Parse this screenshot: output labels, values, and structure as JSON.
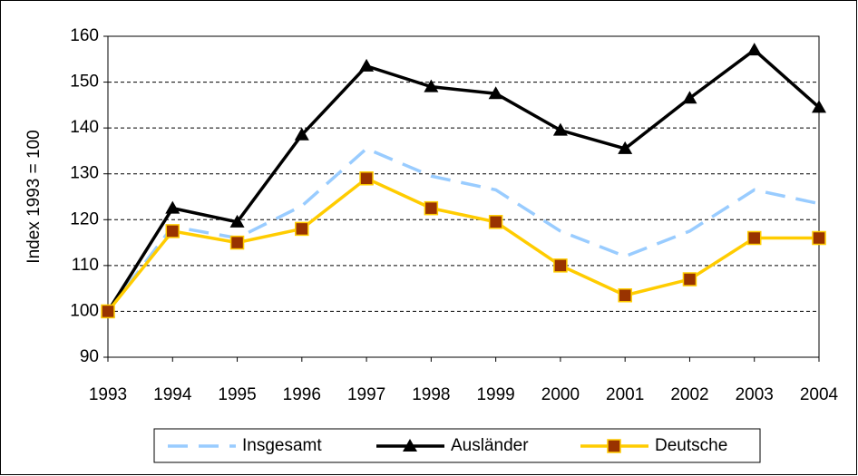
{
  "chart_data": {
    "type": "line",
    "y_label": "Index 1993 = 100",
    "categories": [
      "1993",
      "1994",
      "1995",
      "1996",
      "1997",
      "1998",
      "1999",
      "2000",
      "2001",
      "2002",
      "2003",
      "2004"
    ],
    "series": [
      {
        "name": "Insgesamt",
        "color": "#99ccff",
        "dash": true,
        "marker": "none",
        "values": [
          100,
          118.5,
          116,
          123,
          135.5,
          129.5,
          126.5,
          117.5,
          112,
          117.5,
          126.5,
          123.5
        ]
      },
      {
        "name": "Ausländer",
        "color": "#000000",
        "dash": false,
        "marker": "triangle",
        "marker_color": "#000000",
        "values": [
          100,
          122.5,
          119.5,
          138.5,
          153.5,
          149,
          147.5,
          139.5,
          135.5,
          146.5,
          157,
          144.5
        ]
      },
      {
        "name": "Deutsche",
        "color": "#ffcc00",
        "dash": false,
        "marker": "square",
        "marker_color": "#993300",
        "values": [
          100,
          117.5,
          115,
          118,
          129,
          122.5,
          119.5,
          110,
          103.5,
          107,
          116,
          116
        ]
      }
    ],
    "ylim": [
      90,
      160
    ],
    "yticks": [
      90,
      100,
      110,
      120,
      130,
      140,
      150,
      160
    ],
    "grid": true,
    "legend": "bottom"
  }
}
